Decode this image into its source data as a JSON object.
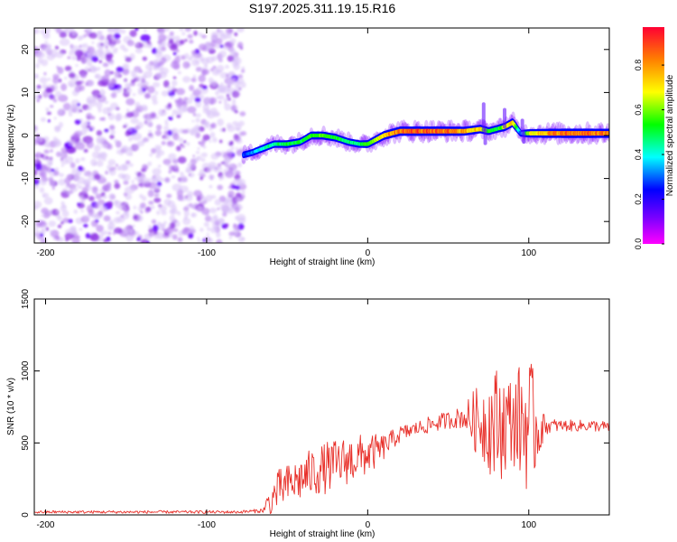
{
  "title": "S197.2025.311.19.15.R16",
  "chart_data": [
    {
      "type": "heatmap",
      "title": "S197.2025.311.19.15.R16",
      "xlabel": "Height of straight line (km)",
      "ylabel": "Frequency (Hz)",
      "xlim": [
        -207,
        150
      ],
      "ylim": [
        -25,
        25
      ],
      "xticks": [
        -200,
        -100,
        0,
        100
      ],
      "yticks": [
        -20,
        -10,
        0,
        10,
        20
      ],
      "colorbar": {
        "label": "Normalized spectral amplitude",
        "range": [
          0,
          0.97
        ],
        "ticks": [
          0.0,
          0.2,
          0.4,
          0.6,
          0.8
        ],
        "colormap": [
          "#ff00ff",
          "#7a00ff",
          "#0000ff",
          "#00ffff",
          "#00ff00",
          "#ffff00",
          "#ff8000",
          "#ff0033"
        ]
      },
      "noise_region_x": [
        -207,
        -77
      ],
      "ridge": {
        "x": [
          -77,
          -72,
          -65,
          -58,
          -50,
          -42,
          -35,
          -28,
          -20,
          -12,
          -5,
          0,
          5,
          10,
          15,
          20,
          30,
          40,
          50,
          60,
          70,
          75,
          80,
          85,
          90,
          95,
          100,
          110,
          120,
          130,
          140,
          150
        ],
        "freq": [
          -4.5,
          -4,
          -3,
          -2,
          -2,
          -1.5,
          0,
          0,
          -0.5,
          -1.5,
          -2,
          -2,
          -1,
          0,
          0.5,
          1,
          1,
          1,
          1,
          1,
          1.5,
          1,
          1.5,
          2,
          3,
          0.5,
          0.5,
          0.5,
          0.5,
          0.5,
          0.5,
          0.5
        ],
        "amplitude": [
          0.3,
          0.35,
          0.45,
          0.5,
          0.55,
          0.55,
          0.6,
          0.6,
          0.55,
          0.5,
          0.5,
          0.6,
          0.7,
          0.8,
          0.85,
          0.9,
          0.95,
          0.92,
          0.9,
          0.85,
          0.75,
          0.6,
          0.55,
          0.7,
          0.8,
          0.3,
          0.7,
          0.85,
          0.9,
          0.92,
          0.9,
          0.88
        ]
      }
    },
    {
      "type": "line",
      "xlabel": "Height of straight line (km)",
      "ylabel": "SNR (10 * v/v)",
      "xlim": [
        -207,
        150
      ],
      "ylim": [
        0,
        1500
      ],
      "xticks": [
        -200,
        -100,
        0,
        100
      ],
      "yticks": [
        0,
        500,
        1000,
        1500
      ],
      "color": "#e8302a",
      "series": [
        {
          "name": "SNR",
          "x": [
            -207,
            -180,
            -150,
            -120,
            -100,
            -80,
            -65,
            -62,
            -55,
            -45,
            -35,
            -25,
            -15,
            -5,
            0,
            5,
            10,
            15,
            20,
            30,
            40,
            50,
            60,
            65,
            70,
            75,
            80,
            85,
            90,
            95,
            100,
            105,
            110,
            120,
            130,
            140,
            150
          ],
          "mean": [
            20,
            20,
            20,
            20,
            20,
            20,
            30,
            70,
            180,
            230,
            290,
            330,
            370,
            400,
            420,
            440,
            470,
            520,
            560,
            600,
            630,
            660,
            680,
            660,
            650,
            640,
            620,
            640,
            660,
            650,
            640,
            600,
            620,
            620,
            620,
            620,
            610
          ],
          "amplitude": [
            10,
            10,
            10,
            10,
            10,
            10,
            15,
            100,
            140,
            150,
            170,
            180,
            170,
            160,
            140,
            120,
            90,
            70,
            60,
            50,
            60,
            60,
            80,
            200,
            260,
            340,
            420,
            360,
            300,
            420,
            500,
            300,
            60,
            40,
            40,
            40,
            40
          ]
        }
      ]
    }
  ]
}
